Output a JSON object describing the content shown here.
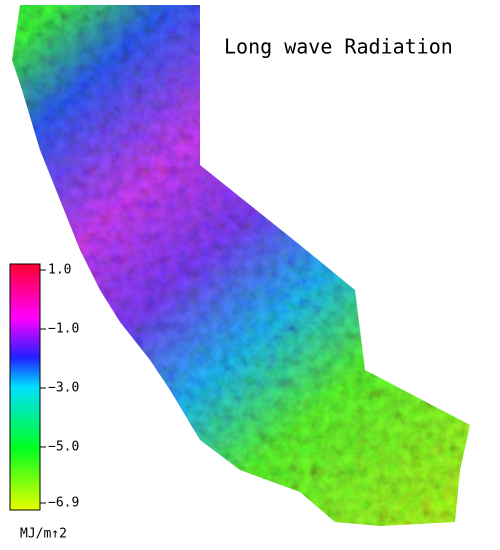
{
  "title": "Long wave Radiation",
  "colorbar": {
    "lim": [
      -6.9,
      1.0
    ],
    "ticks": [
      {
        "value": 1.0,
        "label": "1.0"
      },
      {
        "value": -1.0,
        "label": "−1.0"
      },
      {
        "value": -3.0,
        "label": "−3.0"
      },
      {
        "value": -5.0,
        "label": "−5.0"
      },
      {
        "value": -6.9,
        "label": "−6.9"
      }
    ],
    "unit": "MJ/m↑2"
  }
}
